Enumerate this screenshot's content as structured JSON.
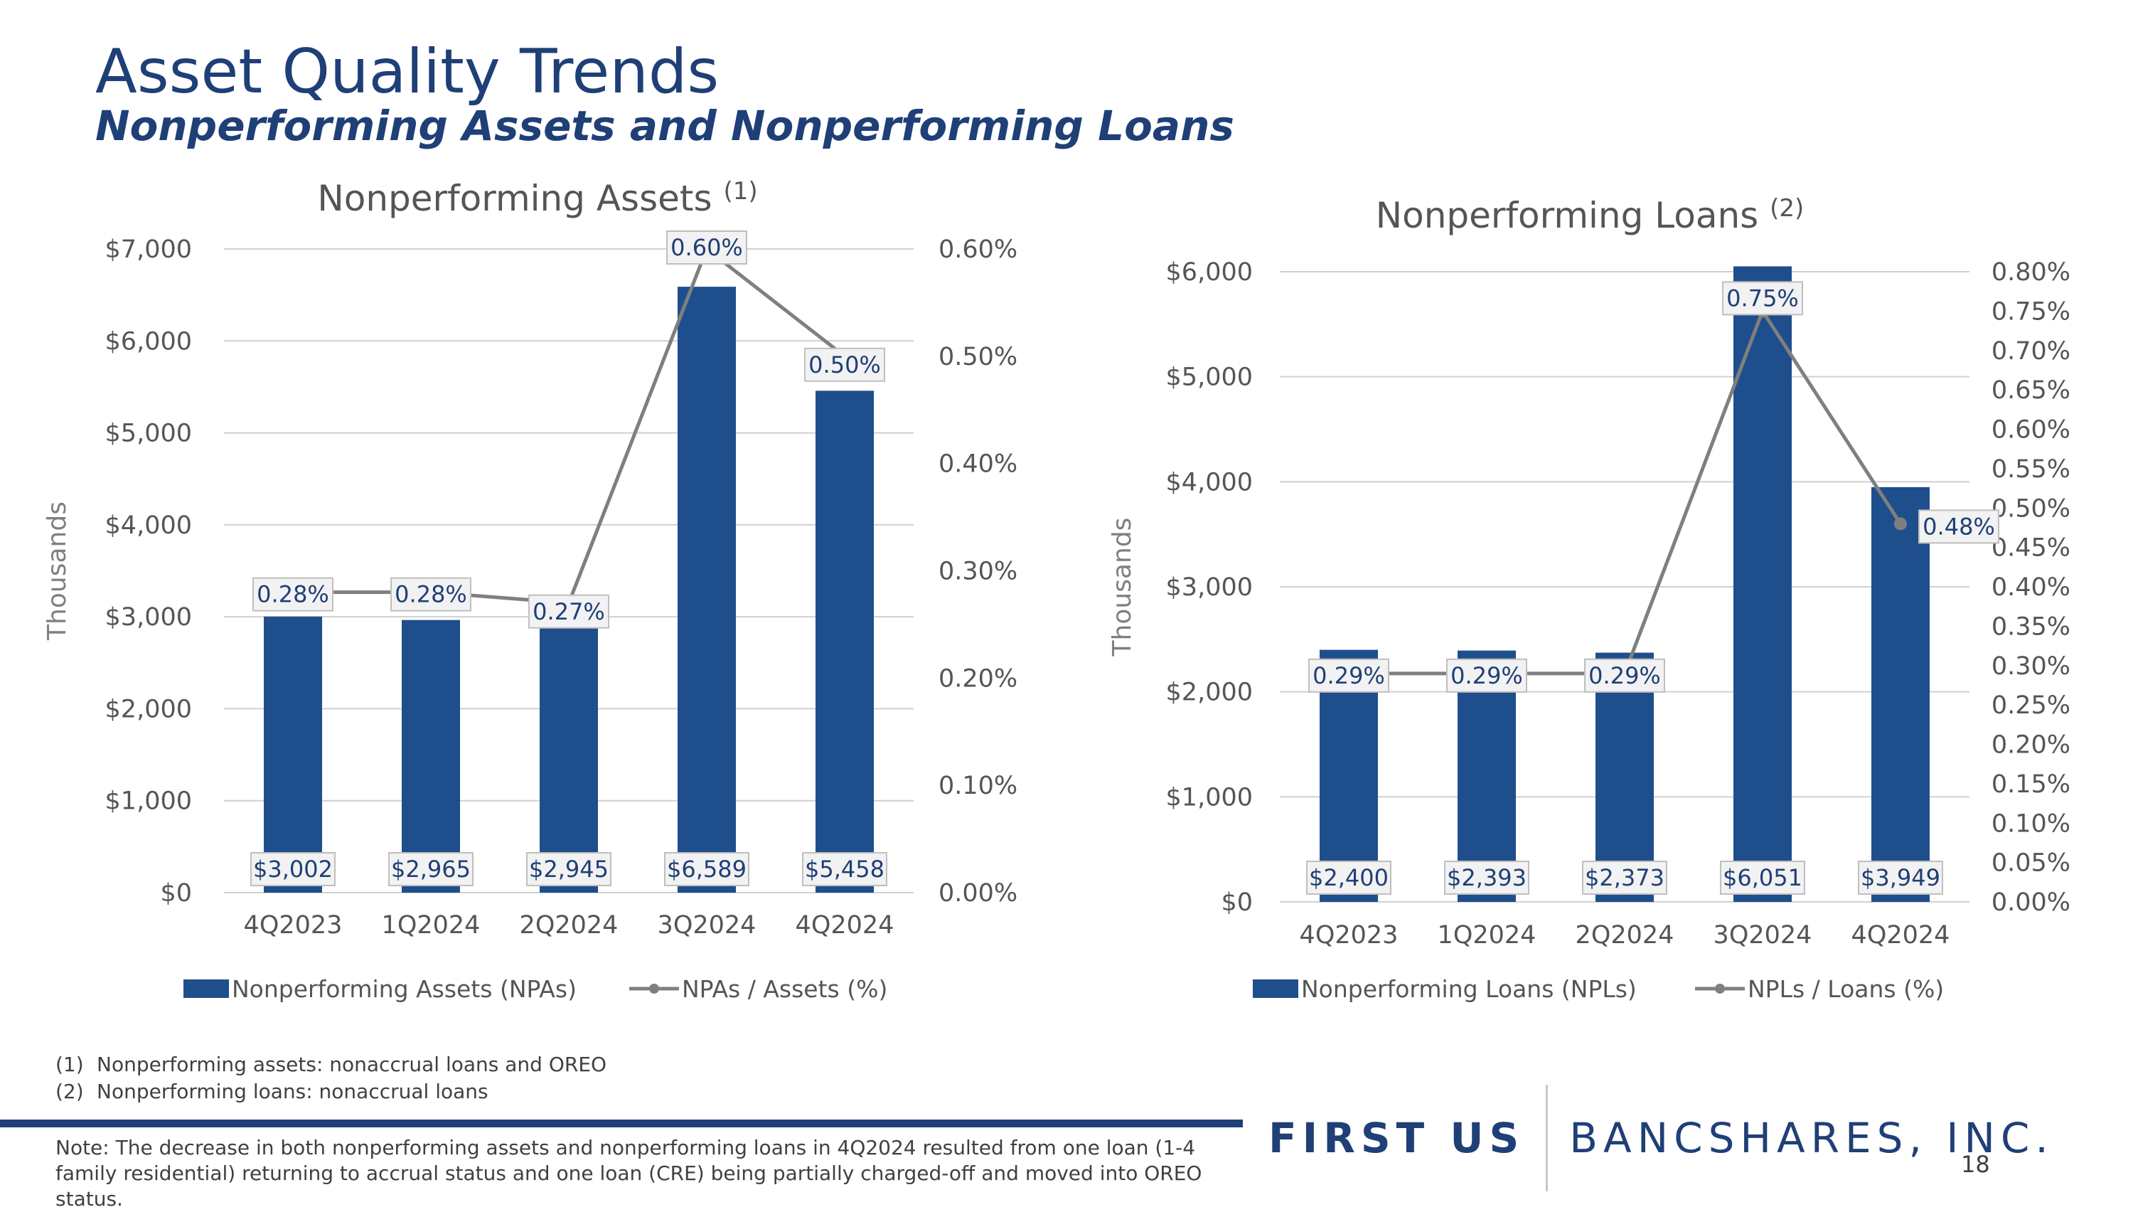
{
  "slide": {
    "title": "Asset Quality Trends",
    "subtitle": "Nonperforming Assets and Nonperforming Loans",
    "footnotes": [
      {
        "marker": "(1)",
        "text": "Nonperforming assets: nonaccrual loans and OREO"
      },
      {
        "marker": "(2)",
        "text": "Nonperforming loans: nonaccrual loans"
      }
    ],
    "note": "Note: The decrease in both nonperforming assets and nonperforming loans in 4Q2024 resulted from one loan (1-4 family residential) returning to accrual status and one loan (CRE) being partially charged-off and moved into OREO status.",
    "logo": {
      "primary": "FIRST US",
      "secondary": "BANCSHARES, INC."
    },
    "page_number": "18"
  },
  "colors": {
    "bar": "#1f4e8c",
    "line": "#7f7f7f",
    "grid": "#d0d0d0",
    "label_border": "#bfbfbf",
    "label_fill": "#f2f2f2",
    "accent": "#1f3f77"
  },
  "chart_data": [
    {
      "type": "bar",
      "title": "Nonperforming Assets",
      "title_note": "(1)",
      "categories": [
        "4Q2023",
        "1Q2024",
        "2Q2024",
        "3Q2024",
        "4Q2024"
      ],
      "ylabel": "Thousands",
      "ylim": [
        0,
        7000
      ],
      "y_ticks": [
        "$0",
        "$1,000",
        "$2,000",
        "$3,000",
        "$4,000",
        "$5,000",
        "$6,000",
        "$7,000"
      ],
      "y2lim": [
        0,
        0.6
      ],
      "y2_ticks": [
        "0.00%",
        "0.10%",
        "0.20%",
        "0.30%",
        "0.40%",
        "0.50%",
        "0.60%"
      ],
      "grid": true,
      "legend_position": "bottom",
      "series": [
        {
          "name": "Nonperforming Assets (NPAs)",
          "kind": "bar",
          "axis": "left",
          "values": [
            3002,
            2965,
            2945,
            6589,
            5458
          ],
          "labels": [
            "$3,002",
            "$2,965",
            "$2,945",
            "$6,589",
            "$5,458"
          ]
        },
        {
          "name": "NPAs / Assets (%)",
          "kind": "line",
          "axis": "right",
          "values": [
            0.28,
            0.28,
            0.27,
            0.6,
            0.5
          ],
          "labels": [
            "0.28%",
            "0.28%",
            "0.27%",
            "0.60%",
            "0.50%"
          ]
        }
      ]
    },
    {
      "type": "bar",
      "title": "Nonperforming Loans",
      "title_note": "(2)",
      "categories": [
        "4Q2023",
        "1Q2024",
        "2Q2024",
        "3Q2024",
        "4Q2024"
      ],
      "ylabel": "Thousands",
      "ylim": [
        0,
        6000
      ],
      "y_ticks": [
        "$0",
        "$1,000",
        "$2,000",
        "$3,000",
        "$4,000",
        "$5,000",
        "$6,000"
      ],
      "y2lim": [
        0,
        0.8
      ],
      "y2_ticks": [
        "0.00%",
        "0.05%",
        "0.10%",
        "0.15%",
        "0.20%",
        "0.25%",
        "0.30%",
        "0.35%",
        "0.40%",
        "0.45%",
        "0.50%",
        "0.55%",
        "0.60%",
        "0.65%",
        "0.70%",
        "0.75%",
        "0.80%"
      ],
      "grid": true,
      "legend_position": "bottom",
      "series": [
        {
          "name": "Nonperforming Loans (NPLs)",
          "kind": "bar",
          "axis": "left",
          "values": [
            2400,
            2393,
            2373,
            6051,
            3949
          ],
          "labels": [
            "$2,400",
            "$2,393",
            "$2,373",
            "$6,051",
            "$3,949"
          ]
        },
        {
          "name": "NPLs / Loans (%)",
          "kind": "line",
          "axis": "right",
          "values": [
            0.29,
            0.29,
            0.29,
            0.75,
            0.48
          ],
          "labels": [
            "0.29%",
            "0.29%",
            "0.29%",
            "0.75%",
            "0.48%"
          ]
        }
      ]
    }
  ]
}
